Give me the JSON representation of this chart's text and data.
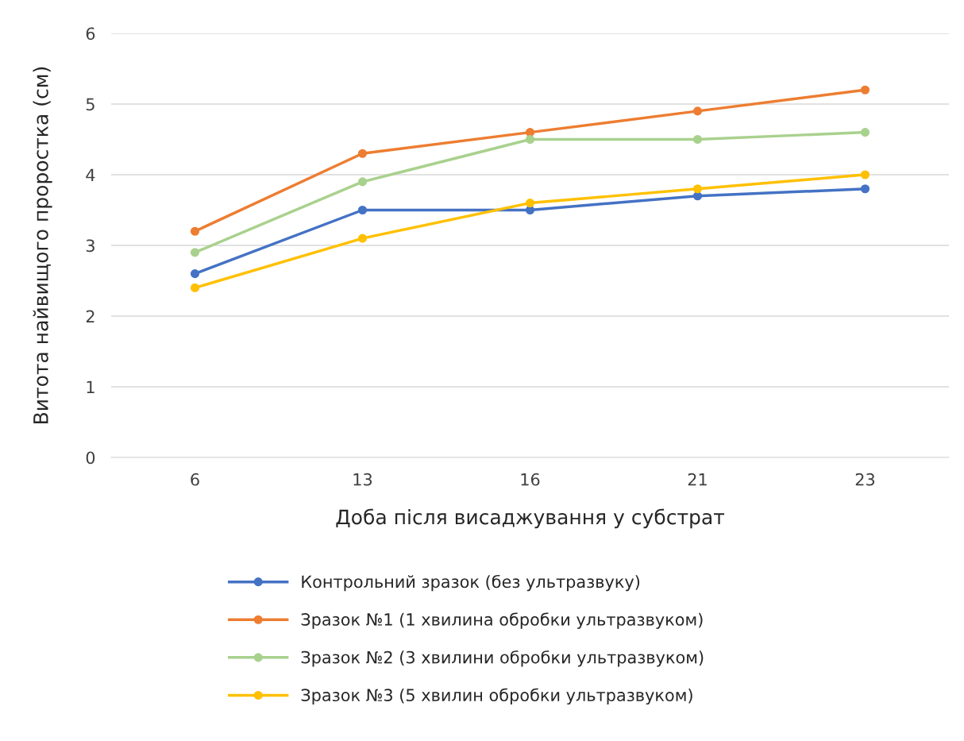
{
  "chart_data": {
    "type": "line",
    "xlabel": "Доба після висаджування у субстрат",
    "ylabel": "Витота найвищого проростка (см)",
    "categories": [
      "6",
      "13",
      "16",
      "21",
      "23"
    ],
    "series": [
      {
        "name": "Контрольний зразок (без ультразвуку)",
        "color": "#4472c4",
        "values": [
          2.6,
          3.5,
          3.5,
          3.7,
          3.8
        ]
      },
      {
        "name": "Зразок №1 (1 хвилина обробки ультразвуком)",
        "color": "#ed7d31",
        "values": [
          3.2,
          4.3,
          4.6,
          4.9,
          5.2
        ]
      },
      {
        "name": "Зразок №2 (3 хвилини обробки ультразвуком)",
        "color": "#a9d18e",
        "values": [
          2.9,
          3.9,
          4.5,
          4.5,
          4.6
        ]
      },
      {
        "name": "Зразок №3 (5 хвилин обробки ультразвуком)",
        "color": "#ffc000",
        "values": [
          2.4,
          3.1,
          3.6,
          3.8,
          4.0
        ]
      }
    ],
    "ylim": [
      0,
      6
    ],
    "yticks": [
      0,
      1,
      2,
      3,
      4,
      5,
      6
    ],
    "grid": "y",
    "legend": "bottom",
    "marker": "circle",
    "line_style": "solid"
  }
}
